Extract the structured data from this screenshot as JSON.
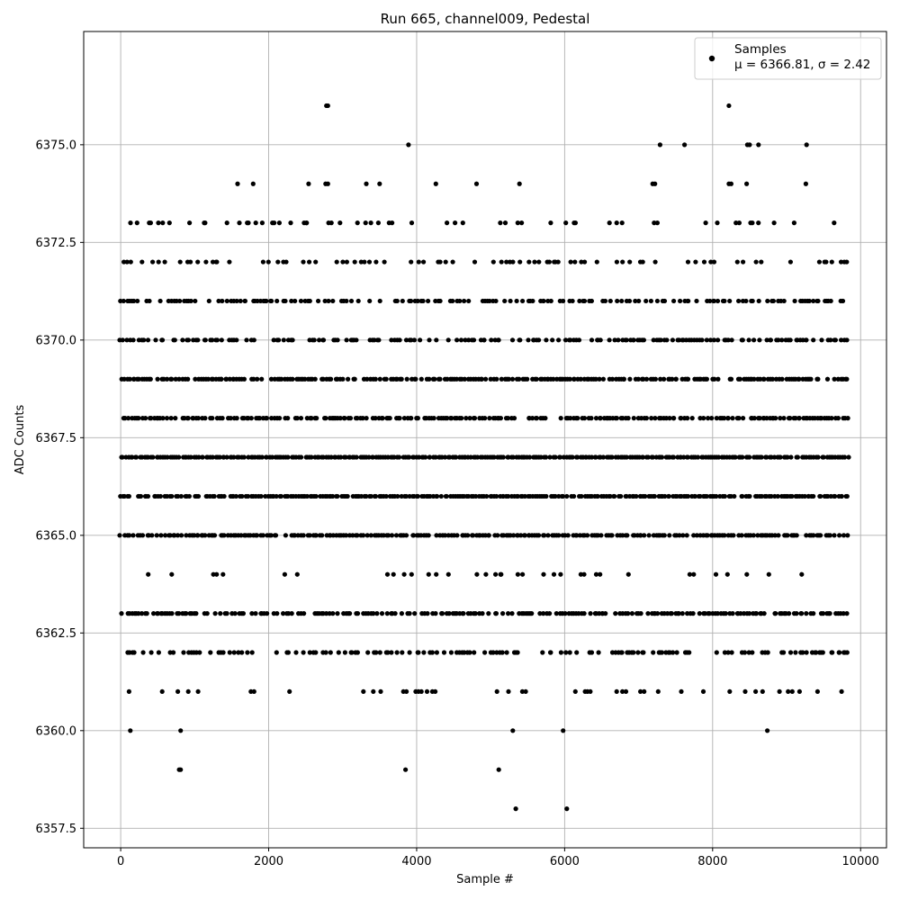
{
  "chart_data": {
    "type": "scatter",
    "title": "Run 665, channel009, Pedestal",
    "xlabel": "Sample #",
    "ylabel": "ADC Counts",
    "xlim": [
      -500,
      10350
    ],
    "ylim": [
      6357.0,
      6377.9
    ],
    "xticks": [
      0,
      2000,
      4000,
      6000,
      8000,
      10000
    ],
    "xtick_labels": [
      "0",
      "2000",
      "4000",
      "6000",
      "8000",
      "10000"
    ],
    "yticks": [
      6357.5,
      6360.0,
      6362.5,
      6365.0,
      6367.5,
      6370.0,
      6372.5,
      6375.0
    ],
    "ytick_labels": [
      "6357.5",
      "6360.0",
      "6362.5",
      "6365.0",
      "6367.5",
      "6370.0",
      "6372.5",
      "6375.0"
    ],
    "grid": true,
    "legend": {
      "placement": "top-right",
      "entries": [
        "Samples",
        "μ = 6366.81, σ = 2.42"
      ]
    },
    "series": [
      {
        "name": "Samples",
        "color": "#000000",
        "marker": "circle",
        "n_samples": 10000,
        "x_range": [
          0,
          9850
        ],
        "mean": 6366.81,
        "std": 2.42,
        "levels": [
          {
            "y": 6367,
            "density": 0.98
          },
          {
            "y": 6366,
            "density": 0.9
          },
          {
            "y": 6365,
            "density": 0.82
          },
          {
            "y": 6369,
            "density": 0.8
          },
          {
            "y": 6368,
            "density": 0.75
          },
          {
            "y": 6363,
            "density": 0.7
          },
          {
            "y": 6370,
            "density": 0.55
          },
          {
            "y": 6371,
            "density": 0.5
          },
          {
            "y": 6362,
            "density": 0.45
          },
          {
            "y": 6372,
            "density": 0.3
          },
          {
            "y": 6361,
            "density": 0.15
          },
          {
            "y": 6373,
            "density": 0.15
          },
          {
            "y": 6364,
            "density": 0.1
          }
        ],
        "sparse_points": [
          {
            "x": 2780,
            "y": 6376
          },
          {
            "x": 2800,
            "y": 6376
          },
          {
            "x": 8220,
            "y": 6376
          },
          {
            "x": 3890,
            "y": 6375
          },
          {
            "x": 7290,
            "y": 6375
          },
          {
            "x": 7620,
            "y": 6375
          },
          {
            "x": 8470,
            "y": 6375
          },
          {
            "x": 8500,
            "y": 6375
          },
          {
            "x": 8620,
            "y": 6375
          },
          {
            "x": 9270,
            "y": 6375
          },
          {
            "x": 1580,
            "y": 6374
          },
          {
            "x": 1790,
            "y": 6374
          },
          {
            "x": 2540,
            "y": 6374
          },
          {
            "x": 2770,
            "y": 6374
          },
          {
            "x": 2800,
            "y": 6374
          },
          {
            "x": 3320,
            "y": 6374
          },
          {
            "x": 3500,
            "y": 6374
          },
          {
            "x": 4260,
            "y": 6374
          },
          {
            "x": 4810,
            "y": 6374
          },
          {
            "x": 5390,
            "y": 6374
          },
          {
            "x": 7190,
            "y": 6374
          },
          {
            "x": 7220,
            "y": 6374
          },
          {
            "x": 8220,
            "y": 6374
          },
          {
            "x": 8250,
            "y": 6374
          },
          {
            "x": 8460,
            "y": 6374
          },
          {
            "x": 9260,
            "y": 6374
          },
          {
            "x": 130,
            "y": 6360
          },
          {
            "x": 810,
            "y": 6360
          },
          {
            "x": 5300,
            "y": 6360
          },
          {
            "x": 5980,
            "y": 6360
          },
          {
            "x": 8740,
            "y": 6360
          },
          {
            "x": 790,
            "y": 6359
          },
          {
            "x": 810,
            "y": 6359
          },
          {
            "x": 3850,
            "y": 6359
          },
          {
            "x": 5110,
            "y": 6359
          },
          {
            "x": 5340,
            "y": 6358
          },
          {
            "x": 6030,
            "y": 6358
          }
        ]
      }
    ]
  }
}
